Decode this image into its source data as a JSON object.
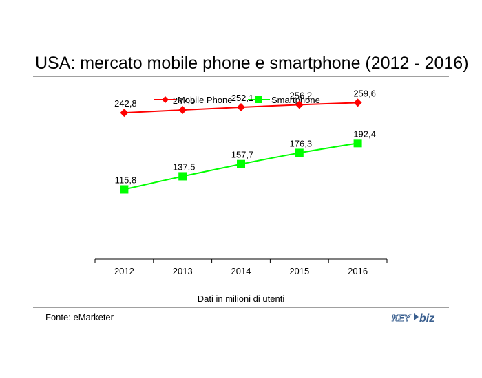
{
  "title": "USA: mercato mobile phone e smartphone (2012 - 2016)",
  "subtitle": "Dati in milioni di utenti",
  "source": "Fonte: eMarketer",
  "logo": {
    "text_left": "KEY",
    "text_right": "biz"
  },
  "chart_data": {
    "type": "line",
    "title": "USA: mercato mobile phone e smartphone (2012 - 2016)",
    "categories": [
      "2012",
      "2013",
      "2014",
      "2015",
      "2016"
    ],
    "ylim": [
      0,
      300
    ],
    "grid": false,
    "legend": "top",
    "series": [
      {
        "name": "Mobile Phone",
        "values": [
          242.8,
          247.5,
          252.1,
          256.2,
          259.6
        ],
        "labels": [
          "242,8",
          "247,5",
          "252,1",
          "256,2",
          "259,6"
        ],
        "color": "#ff0000",
        "marker": "diamond",
        "smooth": false
      },
      {
        "name": "Smartphone",
        "values": [
          115.8,
          137.5,
          157.7,
          176.3,
          192.4
        ],
        "labels": [
          "115,8",
          "137,5",
          "157,7",
          "176,3",
          "192,4"
        ],
        "color": "#00ff00",
        "marker": "square",
        "smooth": true
      }
    ]
  }
}
